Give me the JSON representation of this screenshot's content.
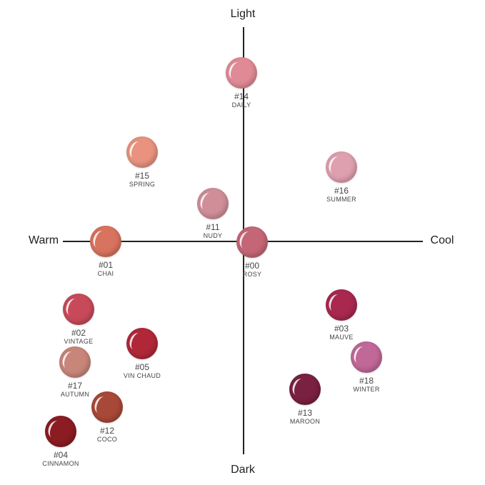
{
  "axes": {
    "top": "Light",
    "bottom": "Dark",
    "left": "Warm",
    "right": "Cool"
  },
  "items": [
    {
      "number": "#14",
      "name": "DAILY",
      "color": "#e08a96"
    },
    {
      "number": "#15",
      "name": "SPRING",
      "color": "#e8927f"
    },
    {
      "number": "#16",
      "name": "SUMMER",
      "color": "#dea0ae"
    },
    {
      "number": "#11",
      "name": "NUDY",
      "color": "#cf8e98"
    },
    {
      "number": "#01",
      "name": "CHAI",
      "color": "#d8735f"
    },
    {
      "number": "#00",
      "name": "ROSY",
      "color": "#c46676"
    },
    {
      "number": "#02",
      "name": "VINTAGE",
      "color": "#c84a5a"
    },
    {
      "number": "#03",
      "name": "MAUVE",
      "color": "#a82850"
    },
    {
      "number": "#05",
      "name": "VIN CHAUD",
      "color": "#b02838"
    },
    {
      "number": "#17",
      "name": "AUTUMN",
      "color": "#c8857a"
    },
    {
      "number": "#18",
      "name": "WINTER",
      "color": "#c06898"
    },
    {
      "number": "#13",
      "name": "MAROON",
      "color": "#7a2040"
    },
    {
      "number": "#12",
      "name": "COCO",
      "color": "#a84838"
    },
    {
      "number": "#04",
      "name": "CINNAMON",
      "color": "#8a1c22"
    }
  ]
}
